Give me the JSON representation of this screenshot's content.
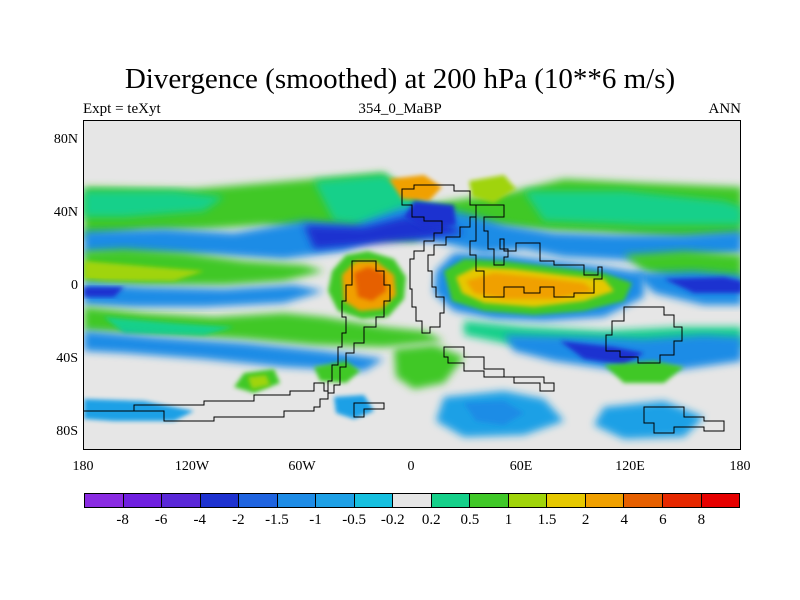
{
  "title": "Divergence (smoothed) at 200 hPa (10**6 m/s)",
  "subtitle_left": "Expt = teXyt",
  "subtitle_center": "354_0_MaBP",
  "subtitle_right": "ANN",
  "y_ticks": [
    "80N",
    "40N",
    "0",
    "40S",
    "80S"
  ],
  "x_ticks": [
    "180",
    "120W",
    "60W",
    "0",
    "60E",
    "120E",
    "180"
  ],
  "colorbar": {
    "labels": [
      "-8",
      "-6",
      "-4",
      "-2",
      "-1.5",
      "-1",
      "-0.5",
      "-0.2",
      "0.2",
      "0.5",
      "1",
      "1.5",
      "2",
      "4",
      "6",
      "8"
    ],
    "colors": [
      "#8a2be2",
      "#7020e0",
      "#5a28d8",
      "#1e32d0",
      "#1f64e0",
      "#1e8ce6",
      "#1ea0e6",
      "#16c0e0",
      "#e6e6e6",
      "#15d08a",
      "#40c828",
      "#a0d40a",
      "#e6c800",
      "#f0a000",
      "#e66000",
      "#e62800",
      "#e60000"
    ]
  }
}
